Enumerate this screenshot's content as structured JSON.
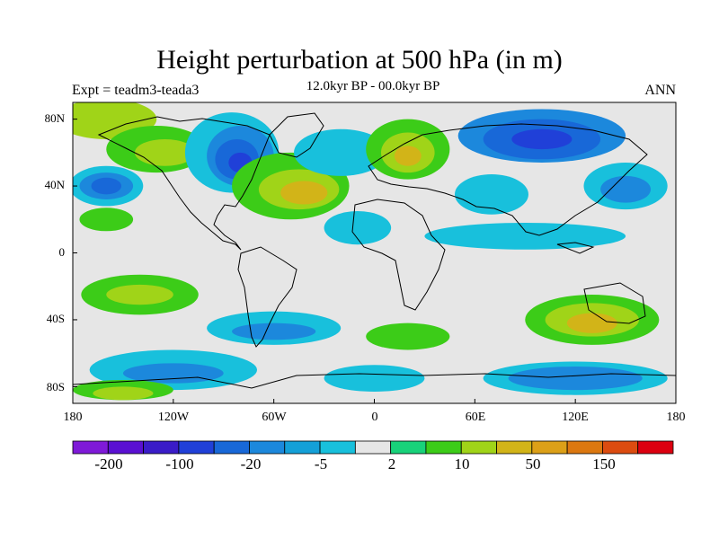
{
  "header": {
    "title": "Height perturbation at 500 hPa (in m)",
    "subtitle": "12.0kyr BP - 00.0kyr BP",
    "left_label": "Expt = teadm3-teada3",
    "right_label": "ANN"
  },
  "axes": {
    "lat_labels": [
      "80N",
      "40N",
      "0",
      "40S",
      "80S"
    ],
    "lon_labels": [
      "180",
      "120W",
      "60W",
      "0",
      "60E",
      "120E",
      "180"
    ]
  },
  "colorbar": {
    "colors": [
      "#7f1ad8",
      "#5a10d2",
      "#3a1cc8",
      "#2040d8",
      "#1868d8",
      "#1c88dc",
      "#14a0d8",
      "#18c0dc",
      "#e6e6e6",
      "#18d27a",
      "#3ccc18",
      "#a0d418",
      "#d2b418",
      "#dca018",
      "#dc7810",
      "#dc4c10",
      "#dc0010"
    ],
    "tick_labels": [
      "-200",
      "-100",
      "-20",
      "-5",
      "2",
      "10",
      "50",
      "150"
    ]
  },
  "map_data": {
    "projection": "cylindrical-equidistant",
    "lon_range": [
      -180,
      180
    ],
    "lat_range": [
      -90,
      90
    ],
    "background_level_color": "#e6e6e6",
    "blobs": [
      {
        "lon": -160,
        "lat": 80,
        "rlon": 30,
        "rlat": 12,
        "color": "#a0d418"
      },
      {
        "lon": -130,
        "lat": 62,
        "rlon": 30,
        "rlat": 14,
        "color": "#3ccc18"
      },
      {
        "lon": -125,
        "lat": 60,
        "rlon": 18,
        "rlat": 8,
        "color": "#a0d418"
      },
      {
        "lon": -85,
        "lat": 60,
        "rlon": 28,
        "rlat": 24,
        "color": "#18c0dc"
      },
      {
        "lon": -80,
        "lat": 58,
        "rlon": 20,
        "rlat": 18,
        "color": "#1c88dc"
      },
      {
        "lon": -82,
        "lat": 56,
        "rlon": 13,
        "rlat": 12,
        "color": "#1868d8"
      },
      {
        "lon": -80,
        "lat": 54,
        "rlon": 7,
        "rlat": 6,
        "color": "#2040d8"
      },
      {
        "lon": -50,
        "lat": 40,
        "rlon": 35,
        "rlat": 20,
        "color": "#3ccc18"
      },
      {
        "lon": -45,
        "lat": 38,
        "rlon": 24,
        "rlat": 12,
        "color": "#a0d418"
      },
      {
        "lon": -42,
        "lat": 36,
        "rlon": 14,
        "rlat": 7,
        "color": "#d2b418"
      },
      {
        "lon": -160,
        "lat": 40,
        "rlon": 22,
        "rlat": 12,
        "color": "#18c0dc"
      },
      {
        "lon": -160,
        "lat": 40,
        "rlon": 16,
        "rlat": 8,
        "color": "#1c88dc"
      },
      {
        "lon": -160,
        "lat": 40,
        "rlon": 9,
        "rlat": 5,
        "color": "#1868d8"
      },
      {
        "lon": -160,
        "lat": 20,
        "rlon": 16,
        "rlat": 7,
        "color": "#3ccc18"
      },
      {
        "lon": -20,
        "lat": 60,
        "rlon": 28,
        "rlat": 14,
        "color": "#18c0dc"
      },
      {
        "lon": 20,
        "lat": 62,
        "rlon": 25,
        "rlat": 18,
        "color": "#3ccc18"
      },
      {
        "lon": 20,
        "lat": 60,
        "rlon": 16,
        "rlat": 12,
        "color": "#a0d418"
      },
      {
        "lon": 20,
        "lat": 58,
        "rlon": 8,
        "rlat": 6,
        "color": "#d2b418"
      },
      {
        "lon": 100,
        "lat": 70,
        "rlon": 50,
        "rlat": 16,
        "color": "#1c88dc"
      },
      {
        "lon": 100,
        "lat": 68,
        "rlon": 35,
        "rlat": 12,
        "color": "#1868d8"
      },
      {
        "lon": 100,
        "lat": 68,
        "rlon": 18,
        "rlat": 6,
        "color": "#2040d8"
      },
      {
        "lon": 150,
        "lat": 40,
        "rlon": 25,
        "rlat": 14,
        "color": "#18c0dc"
      },
      {
        "lon": 150,
        "lat": 38,
        "rlon": 15,
        "rlat": 8,
        "color": "#1c88dc"
      },
      {
        "lon": 70,
        "lat": 35,
        "rlon": 22,
        "rlat": 12,
        "color": "#18c0dc"
      },
      {
        "lon": -10,
        "lat": 15,
        "rlon": 20,
        "rlat": 10,
        "color": "#18c0dc"
      },
      {
        "lon": 90,
        "lat": 10,
        "rlon": 60,
        "rlat": 8,
        "color": "#18c0dc"
      },
      {
        "lon": -140,
        "lat": -25,
        "rlon": 35,
        "rlat": 12,
        "color": "#3ccc18"
      },
      {
        "lon": -140,
        "lat": -25,
        "rlon": 20,
        "rlat": 6,
        "color": "#a0d418"
      },
      {
        "lon": -60,
        "lat": -45,
        "rlon": 40,
        "rlat": 10,
        "color": "#18c0dc"
      },
      {
        "lon": -60,
        "lat": -47,
        "rlon": 25,
        "rlat": 5,
        "color": "#1c88dc"
      },
      {
        "lon": 20,
        "lat": -50,
        "rlon": 25,
        "rlat": 8,
        "color": "#3ccc18"
      },
      {
        "lon": 130,
        "lat": -40,
        "rlon": 40,
        "rlat": 15,
        "color": "#3ccc18"
      },
      {
        "lon": 130,
        "lat": -40,
        "rlon": 28,
        "rlat": 10,
        "color": "#a0d418"
      },
      {
        "lon": 130,
        "lat": -42,
        "rlon": 15,
        "rlat": 6,
        "color": "#d2b418"
      },
      {
        "lon": -120,
        "lat": -70,
        "rlon": 50,
        "rlat": 12,
        "color": "#18c0dc"
      },
      {
        "lon": -120,
        "lat": -72,
        "rlon": 30,
        "rlat": 6,
        "color": "#1c88dc"
      },
      {
        "lon": 120,
        "lat": -75,
        "rlon": 55,
        "rlat": 10,
        "color": "#18c0dc"
      },
      {
        "lon": 120,
        "lat": -75,
        "rlon": 40,
        "rlat": 7,
        "color": "#1c88dc"
      },
      {
        "lon": 0,
        "lat": -75,
        "rlon": 30,
        "rlat": 8,
        "color": "#18c0dc"
      },
      {
        "lon": -150,
        "lat": -82,
        "rlon": 30,
        "rlat": 6,
        "color": "#3ccc18"
      },
      {
        "lon": -150,
        "lat": -84,
        "rlon": 18,
        "rlat": 4,
        "color": "#a0d418"
      }
    ]
  }
}
